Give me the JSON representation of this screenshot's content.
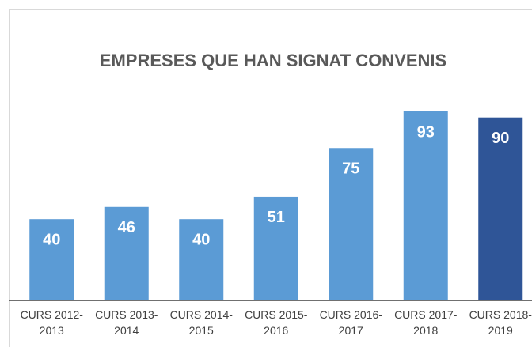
{
  "chart_data": {
    "type": "bar",
    "title": "EMPRESES QUE HAN SIGNAT CONVENIS",
    "categories": [
      "CURS 2012-2013",
      "CURS 2013-2014",
      "CURS 2014-2015",
      "CURS 2015-2016",
      "CURS 2016-2017",
      "CURS 2017-2018",
      "CURS 2018-2019"
    ],
    "values": [
      40,
      46,
      40,
      51,
      75,
      93,
      90
    ],
    "colors": [
      "#5b9bd5",
      "#5b9bd5",
      "#5b9bd5",
      "#5b9bd5",
      "#5b9bd5",
      "#5b9bd5",
      "#2f5597"
    ],
    "ylim": [
      0,
      100
    ],
    "grid": false
  }
}
